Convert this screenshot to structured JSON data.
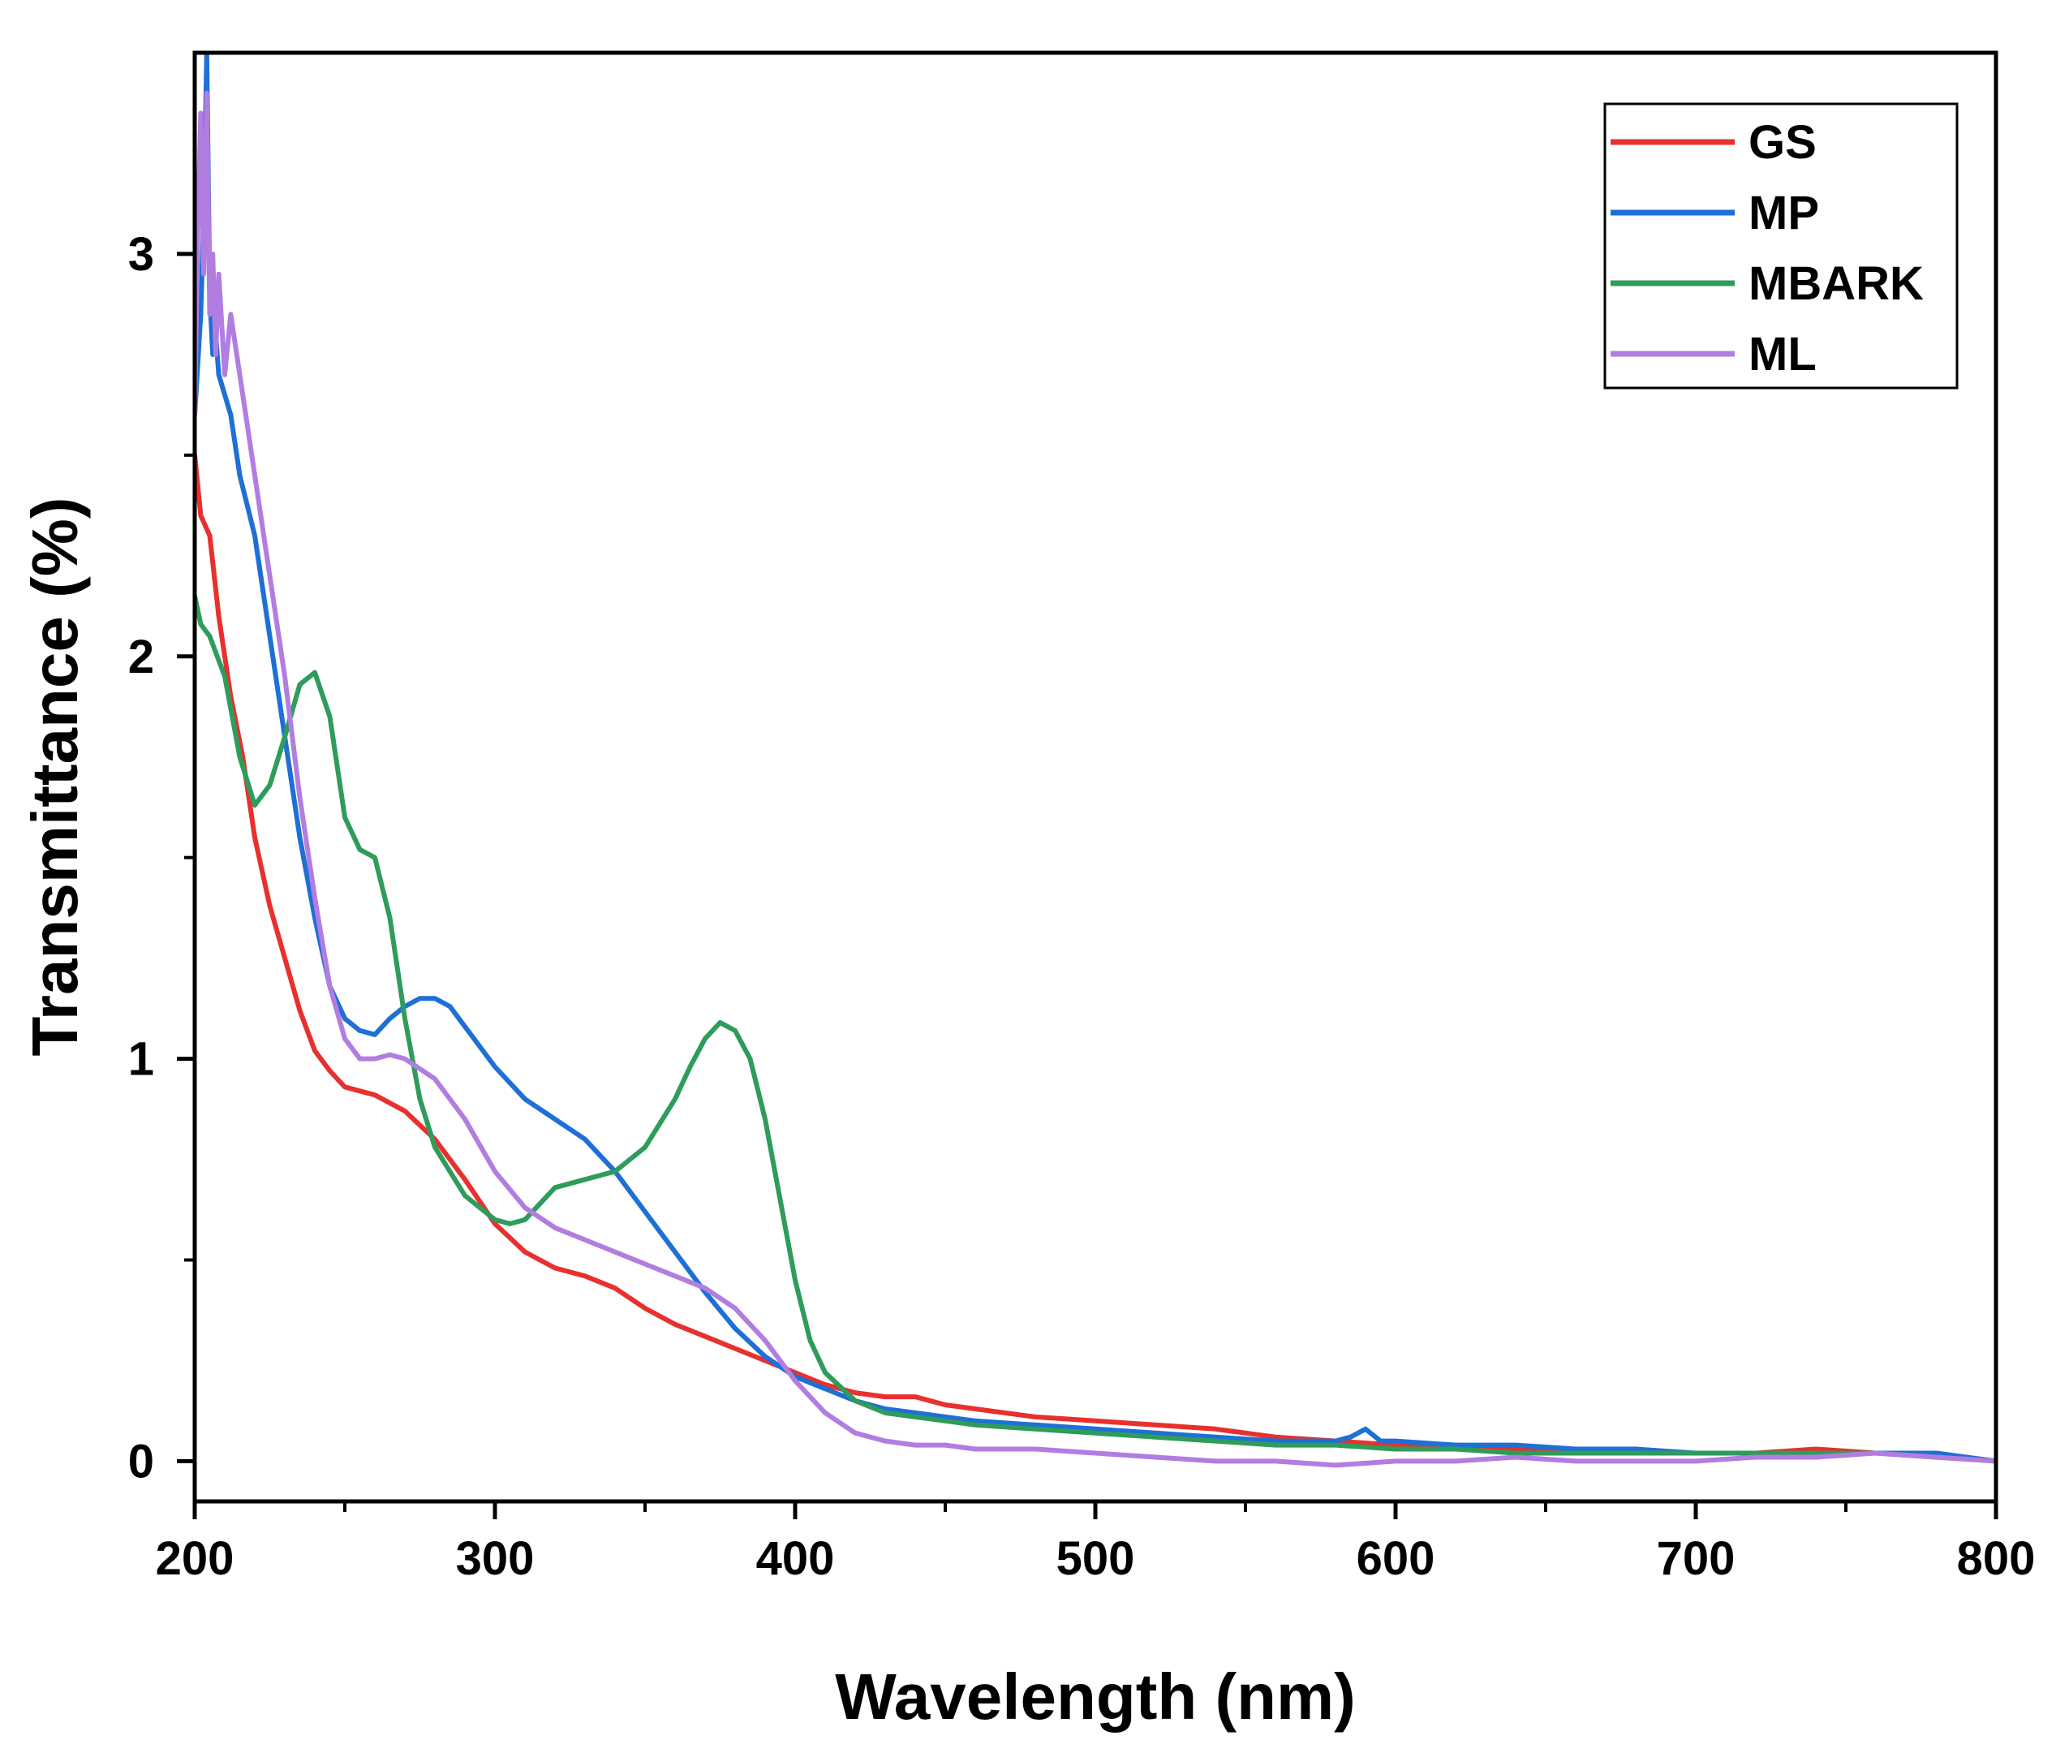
{
  "chart_data": {
    "type": "line",
    "title": "",
    "xlabel": "Wavelength (nm)",
    "ylabel": "Transmittance (%)",
    "xlim": [
      200,
      800
    ],
    "ylim": [
      -0.1,
      3.5
    ],
    "x_ticks": [
      200,
      300,
      400,
      500,
      600,
      700,
      800
    ],
    "x_tick_labels": [
      "200",
      "300",
      "400",
      "500",
      "600",
      "700",
      "800"
    ],
    "y_ticks": [
      0,
      1,
      2,
      3
    ],
    "y_tick_labels": [
      "0",
      "1",
      "2",
      "3"
    ],
    "grid": false,
    "legend_position": "top-right",
    "series": [
      {
        "name": "GS",
        "color": "#e8302e",
        "x": [
          200,
          202,
          205,
          208,
          212,
          216,
          220,
          225,
          230,
          235,
          240,
          245,
          250,
          255,
          260,
          270,
          280,
          290,
          300,
          310,
          320,
          330,
          340,
          350,
          360,
          370,
          380,
          390,
          400,
          410,
          420,
          430,
          440,
          450,
          460,
          480,
          500,
          520,
          540,
          560,
          580,
          600,
          620,
          640,
          660,
          680,
          700,
          720,
          740,
          760,
          780,
          800
        ],
        "y": [
          2.5,
          2.35,
          2.3,
          2.1,
          1.9,
          1.75,
          1.55,
          1.38,
          1.25,
          1.12,
          1.02,
          0.97,
          0.93,
          0.92,
          0.91,
          0.87,
          0.8,
          0.7,
          0.59,
          0.52,
          0.48,
          0.46,
          0.43,
          0.38,
          0.34,
          0.31,
          0.28,
          0.25,
          0.22,
          0.19,
          0.17,
          0.16,
          0.16,
          0.14,
          0.13,
          0.11,
          0.1,
          0.09,
          0.08,
          0.06,
          0.05,
          0.04,
          0.04,
          0.03,
          0.03,
          0.02,
          0.02,
          0.02,
          0.03,
          0.02,
          0.02,
          0.0
        ]
      },
      {
        "name": "MP",
        "color": "#1e6fd6",
        "x": [
          200,
          202,
          203,
          204,
          205,
          206,
          207,
          208,
          210,
          212,
          215,
          220,
          225,
          230,
          235,
          240,
          245,
          250,
          255,
          260,
          265,
          270,
          275,
          280,
          285,
          290,
          300,
          310,
          320,
          330,
          340,
          350,
          360,
          370,
          380,
          390,
          400,
          410,
          420,
          430,
          440,
          450,
          460,
          480,
          500,
          520,
          540,
          560,
          580,
          585,
          590,
          595,
          600,
          620,
          640,
          660,
          680,
          700,
          720,
          740,
          760,
          780,
          800
        ],
        "y": [
          2.6,
          2.85,
          3.1,
          3.5,
          2.9,
          2.75,
          2.8,
          2.7,
          2.65,
          2.6,
          2.45,
          2.3,
          2.05,
          1.8,
          1.55,
          1.35,
          1.18,
          1.1,
          1.07,
          1.06,
          1.1,
          1.13,
          1.15,
          1.15,
          1.13,
          1.08,
          0.98,
          0.9,
          0.85,
          0.8,
          0.72,
          0.62,
          0.52,
          0.42,
          0.33,
          0.26,
          0.21,
          0.18,
          0.15,
          0.13,
          0.12,
          0.11,
          0.1,
          0.09,
          0.08,
          0.07,
          0.06,
          0.05,
          0.05,
          0.06,
          0.08,
          0.05,
          0.05,
          0.04,
          0.04,
          0.03,
          0.03,
          0.02,
          0.02,
          0.02,
          0.02,
          0.02,
          0.0
        ]
      },
      {
        "name": "MBARK",
        "color": "#2e9c5a",
        "x": [
          200,
          202,
          205,
          210,
          215,
          220,
          225,
          230,
          235,
          240,
          245,
          250,
          255,
          260,
          265,
          270,
          275,
          280,
          290,
          300,
          305,
          310,
          320,
          330,
          340,
          350,
          360,
          365,
          370,
          375,
          380,
          385,
          390,
          395,
          400,
          405,
          410,
          420,
          430,
          440,
          450,
          460,
          480,
          500,
          520,
          540,
          560,
          580,
          600,
          620,
          640,
          660,
          680,
          700,
          720,
          740,
          760,
          780,
          800
        ],
        "y": [
          2.15,
          2.08,
          2.05,
          1.95,
          1.75,
          1.63,
          1.68,
          1.8,
          1.93,
          1.96,
          1.85,
          1.6,
          1.52,
          1.5,
          1.35,
          1.1,
          0.9,
          0.78,
          0.66,
          0.6,
          0.59,
          0.6,
          0.68,
          0.7,
          0.72,
          0.78,
          0.9,
          0.98,
          1.05,
          1.09,
          1.07,
          1.0,
          0.85,
          0.65,
          0.45,
          0.3,
          0.22,
          0.15,
          0.12,
          0.11,
          0.1,
          0.09,
          0.08,
          0.07,
          0.06,
          0.05,
          0.04,
          0.04,
          0.03,
          0.03,
          0.02,
          0.02,
          0.02,
          0.02,
          0.02,
          0.02,
          0.02,
          0.01,
          0.0
        ]
      },
      {
        "name": "ML",
        "color": "#b27de0",
        "x": [
          200,
          201,
          202,
          203,
          204,
          205,
          206,
          207,
          208,
          210,
          212,
          215,
          220,
          225,
          230,
          235,
          240,
          245,
          250,
          255,
          260,
          265,
          270,
          280,
          290,
          300,
          310,
          320,
          330,
          340,
          350,
          360,
          370,
          380,
          390,
          400,
          410,
          420,
          430,
          440,
          450,
          460,
          480,
          500,
          520,
          540,
          560,
          580,
          600,
          620,
          640,
          660,
          680,
          700,
          720,
          740,
          760,
          780,
          800
        ],
        "y": [
          2.6,
          3.05,
          3.35,
          2.95,
          3.4,
          2.85,
          3.0,
          2.75,
          2.95,
          2.7,
          2.85,
          2.7,
          2.45,
          2.2,
          1.95,
          1.65,
          1.4,
          1.18,
          1.05,
          1.0,
          1.0,
          1.01,
          1.0,
          0.95,
          0.85,
          0.72,
          0.63,
          0.58,
          0.55,
          0.52,
          0.49,
          0.46,
          0.43,
          0.38,
          0.3,
          0.2,
          0.12,
          0.07,
          0.05,
          0.04,
          0.04,
          0.03,
          0.03,
          0.02,
          0.01,
          0.0,
          0.0,
          -0.01,
          0.0,
          0.0,
          0.01,
          0.0,
          0.0,
          0.0,
          0.01,
          0.01,
          0.02,
          0.01,
          0.0
        ]
      }
    ]
  }
}
